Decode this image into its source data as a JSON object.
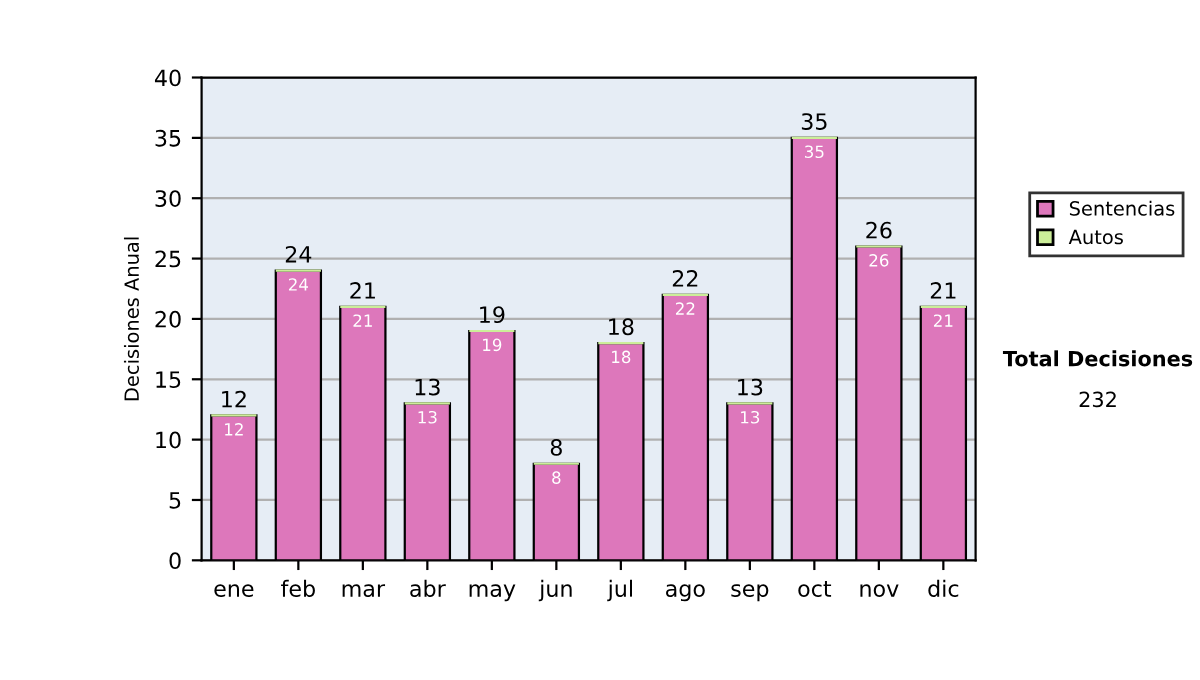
{
  "chart_data": {
    "type": "bar",
    "stacked": true,
    "ylabel": "Decisiones Anual",
    "categories": [
      "ene",
      "feb",
      "mar",
      "abr",
      "may",
      "jun",
      "jul",
      "ago",
      "sep",
      "oct",
      "nov",
      "dic"
    ],
    "series": [
      {
        "name": "Sentencias",
        "color": "#dd77bb",
        "values": [
          12,
          24,
          21,
          13,
          19,
          8,
          18,
          22,
          13,
          35,
          26,
          21
        ],
        "value_labels": [
          "12",
          "24",
          "21",
          "13",
          "19",
          "8",
          "18",
          "22",
          "13",
          "35",
          "26",
          "21"
        ]
      },
      {
        "name": "Autos",
        "color": "#ccee99",
        "values": [
          0,
          0,
          0,
          0,
          0,
          0,
          0,
          0,
          0,
          0,
          0,
          0
        ]
      }
    ],
    "totals": [
      "12",
      "24",
      "21",
      "13",
      "19",
      "8",
      "18",
      "22",
      "13",
      "35",
      "26",
      "21"
    ],
    "ylim": [
      0,
      40
    ],
    "yticks": [
      0,
      5,
      10,
      15,
      20,
      25,
      30,
      35,
      40
    ],
    "grid": "y",
    "legend": "right",
    "annotations": [
      "Total Decisiones",
      "232"
    ]
  }
}
